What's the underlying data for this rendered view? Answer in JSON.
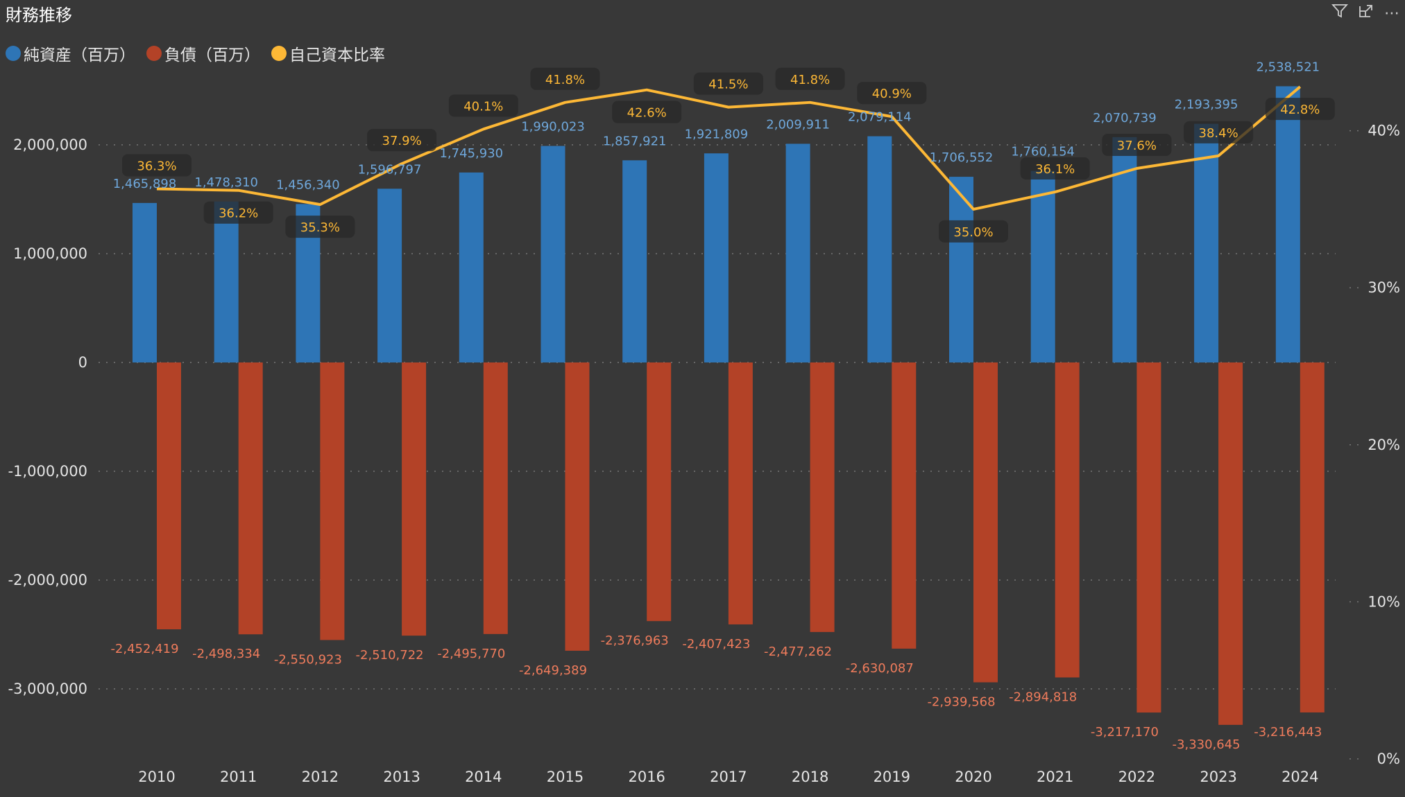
{
  "header": {
    "title": "財務推移",
    "filter_icon": "filter-icon",
    "focus_icon": "focus-mode-icon",
    "more_icon": "more-options-icon"
  },
  "legend": [
    {
      "label": "純資産（百万）",
      "color": "#2e75b6"
    },
    {
      "label": "負債（百万）",
      "color": "#b34227"
    },
    {
      "label": "自己資本比率",
      "color": "#fdb836"
    }
  ],
  "chart_data": {
    "type": "bar",
    "title": "財務推移",
    "categories": [
      "2010",
      "2011",
      "2012",
      "2013",
      "2014",
      "2015",
      "2016",
      "2017",
      "2018",
      "2019",
      "2020",
      "2021",
      "2022",
      "2023",
      "2024"
    ],
    "series": [
      {
        "name": "純資産（百万）",
        "type": "bar",
        "axis": "left",
        "color": "#2e75b6",
        "label_color": "#6fa8dc",
        "values": [
          1465898,
          1478310,
          1456340,
          1596797,
          1745930,
          1990023,
          1857921,
          1921809,
          2009911,
          2079114,
          1706552,
          1760154,
          2070739,
          2193395,
          2538521
        ],
        "labels": [
          "1,465,898",
          "1,478,310",
          "1,456,340",
          "1,596,797",
          "1,745,930",
          "1,990,023",
          "1,857,921",
          "1,921,809",
          "2,009,911",
          "2,079,114",
          "1,706,552",
          "1,760,154",
          "2,070,739",
          "2,193,395",
          "2,538,521"
        ]
      },
      {
        "name": "負債（百万）",
        "type": "bar",
        "axis": "left",
        "color": "#b34227",
        "label_color": "#f07c5c",
        "values": [
          -2452419,
          -2498334,
          -2550923,
          -2510722,
          -2495770,
          -2649389,
          -2376963,
          -2407423,
          -2477262,
          -2630087,
          -2939568,
          -2894818,
          -3217170,
          -3330645,
          -3216443
        ],
        "labels": [
          "-2,452,419",
          "-2,498,334",
          "-2,550,923",
          "-2,510,722",
          "-2,495,770",
          "-2,649,389",
          "-2,376,963",
          "-2,407,423",
          "-2,477,262",
          "-2,630,087",
          "-2,939,568",
          "-2,894,818",
          "-3,217,170",
          "-3,330,645",
          "-3,216,443"
        ]
      },
      {
        "name": "自己資本比率",
        "type": "line",
        "axis": "right",
        "color": "#fdb836",
        "values": [
          36.3,
          36.2,
          35.3,
          37.9,
          40.1,
          41.8,
          42.6,
          41.5,
          41.8,
          40.9,
          35.0,
          36.1,
          37.6,
          38.4,
          42.8
        ],
        "labels": [
          "36.3%",
          "36.2%",
          "35.3%",
          "37.9%",
          "40.1%",
          "41.8%",
          "42.6%",
          "41.5%",
          "41.8%",
          "40.9%",
          "35.0%",
          "36.1%",
          "37.6%",
          "38.4%",
          "42.8%"
        ]
      }
    ],
    "y_left": {
      "ticks": [
        2000000,
        1000000,
        0,
        -1000000,
        -2000000,
        -3000000
      ],
      "tick_labels": [
        "2,000,000",
        "1,000,000",
        "0",
        "-1,000,000",
        "-2,000,000",
        "-3,000,000"
      ]
    },
    "y_right": {
      "ticks": [
        40,
        30,
        20,
        10,
        0
      ],
      "tick_labels": [
        "40%",
        "30%",
        "20%",
        "10%",
        "0%"
      ]
    },
    "grid": true,
    "legend_position": "top-left"
  }
}
